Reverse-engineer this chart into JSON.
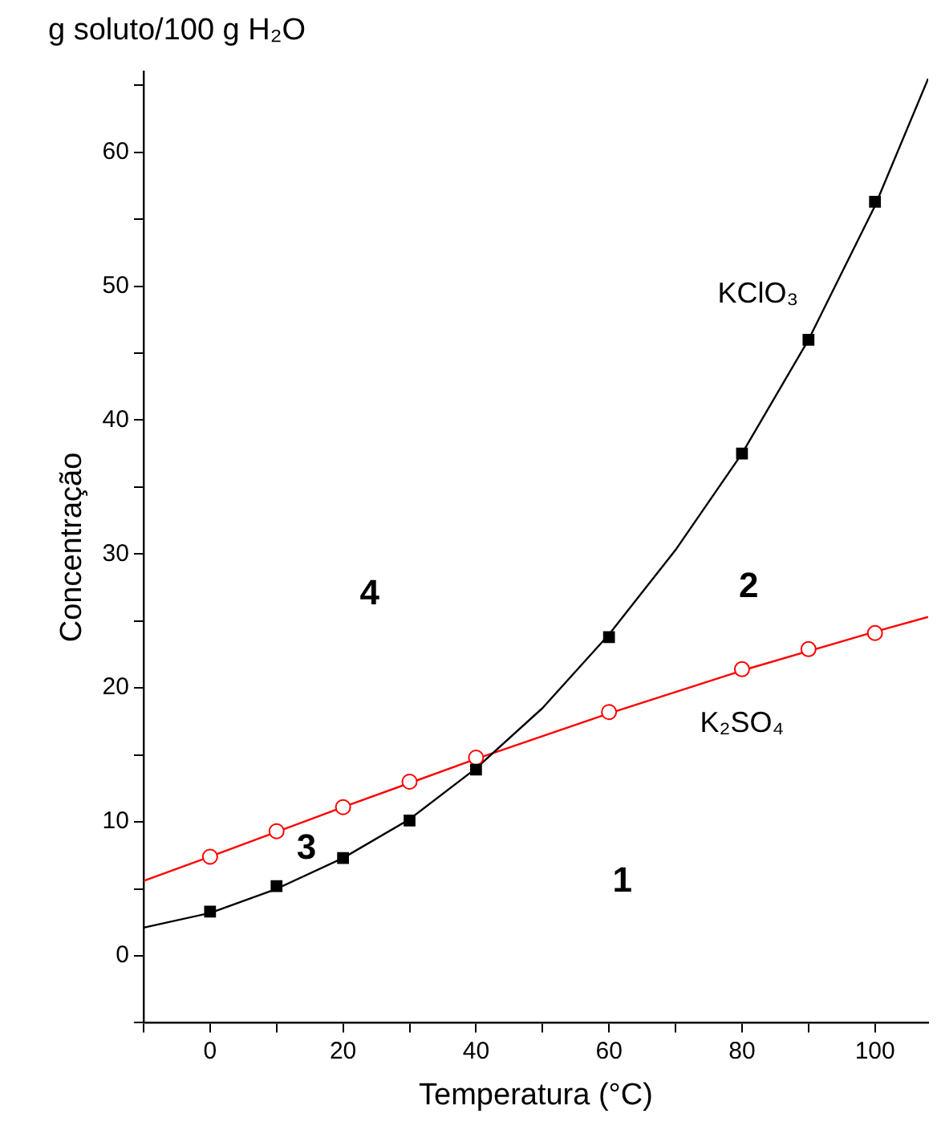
{
  "chart_data": {
    "type": "scatter",
    "title": "g soluto/100 g H₂O",
    "xlabel": "Temperatura (°C)",
    "ylabel": "Concentração",
    "xlim": [
      -10,
      108
    ],
    "ylim": [
      -5,
      66
    ],
    "xticks": [
      {
        "value": -10,
        "label": null
      },
      0,
      {
        "value": 10,
        "label": null
      },
      20,
      {
        "value": 30,
        "label": null
      },
      40,
      {
        "value": 50,
        "label": null
      },
      60,
      {
        "value": 70,
        "label": null
      },
      80,
      {
        "value": 90,
        "label": null
      },
      100
    ],
    "yticks": [
      {
        "value": -5,
        "label": null
      },
      0,
      {
        "value": 5,
        "label": null
      },
      10,
      {
        "value": 15,
        "label": null
      },
      20,
      {
        "value": 25,
        "label": null
      },
      30,
      {
        "value": 35,
        "label": null
      },
      40,
      {
        "value": 45,
        "label": null
      },
      50,
      {
        "value": 55,
        "label": null
      },
      60,
      {
        "value": 65,
        "label": null
      }
    ],
    "grid": false,
    "legend": false,
    "series": [
      {
        "type": "line",
        "color": "#000000",
        "marker": "none",
        "x": [
          -10,
          0,
          10,
          20,
          30,
          40,
          50,
          60,
          70,
          80,
          90,
          100,
          108
        ],
        "values": [
          2.1,
          3.2,
          5,
          7.3,
          10.2,
          14,
          18.5,
          24,
          30.3,
          37.5,
          46,
          56,
          65.5
        ]
      },
      {
        "type": "line",
        "color": "#ff0000",
        "marker": "none",
        "x": [
          -10,
          0,
          20,
          40,
          60,
          80,
          100,
          108
        ],
        "values": [
          5.6,
          7.4,
          11.1,
          14.7,
          18.1,
          21.3,
          24.2,
          25.3
        ]
      },
      {
        "type": "scatter",
        "name": "KClO₃",
        "color": "#000000",
        "marker": "square",
        "x": [
          0,
          10,
          20,
          30,
          40,
          60,
          80,
          90,
          100
        ],
        "values": [
          3.3,
          5.2,
          7.3,
          10.1,
          13.9,
          23.8,
          37.5,
          46,
          56.3
        ]
      },
      {
        "type": "scatter",
        "name": "K₂SO₄",
        "color": "#ff0000",
        "marker": "circle",
        "x": [
          0,
          10,
          20,
          30,
          40,
          60,
          80,
          90,
          100
        ],
        "values": [
          7.4,
          9.3,
          11.1,
          13,
          14.8,
          18.2,
          21.4,
          22.9,
          24.1
        ]
      }
    ],
    "annotations": [
      "4",
      "2",
      "3",
      "1"
    ]
  }
}
